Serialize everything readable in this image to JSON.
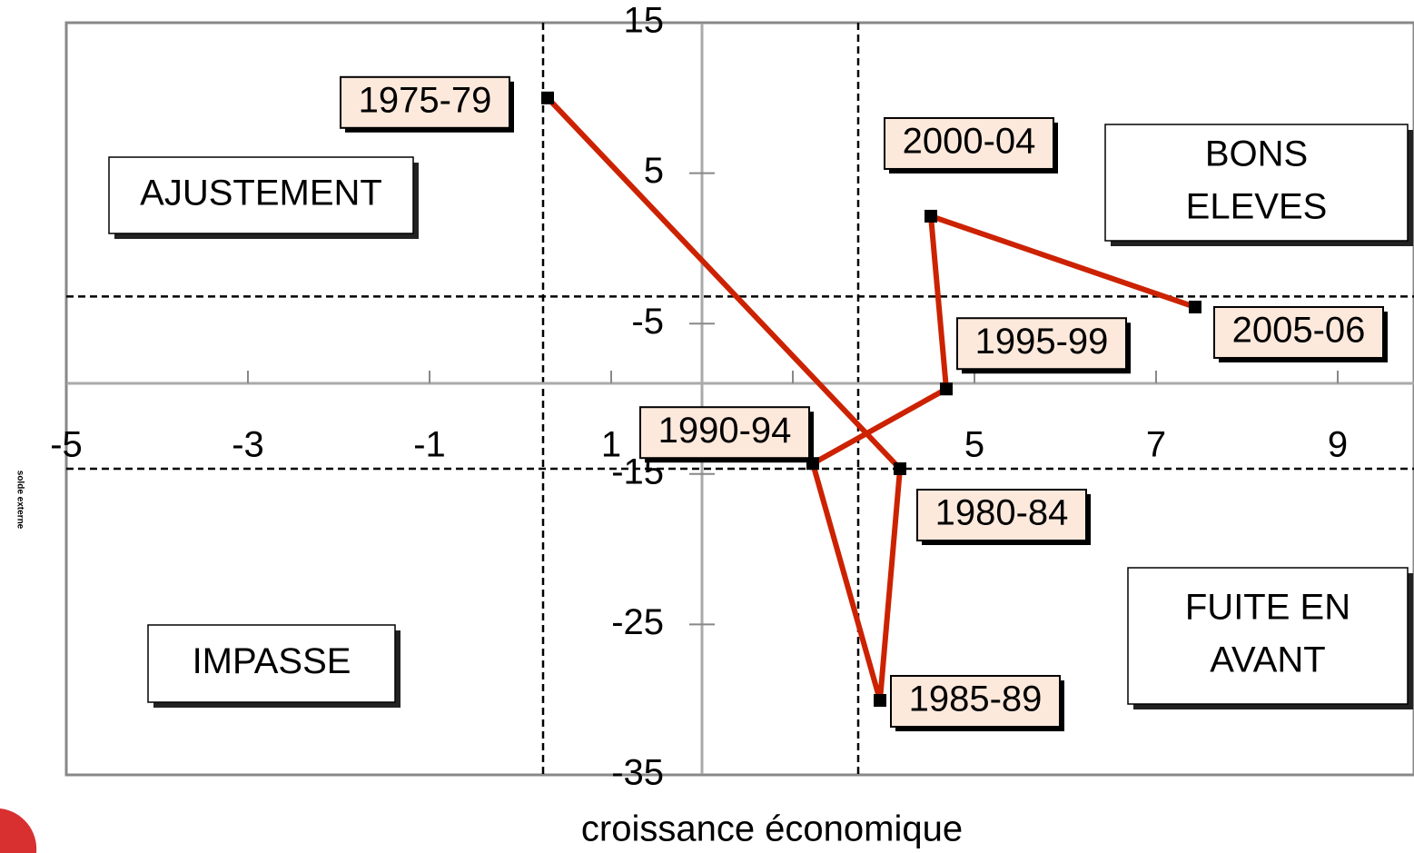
{
  "chart_data": {
    "type": "line",
    "x_label": "croissance économique",
    "y_label": "solde externe",
    "color": "#cc2200",
    "point_labels": [
      "1975-79",
      "1980-84",
      "1985-89",
      "1990-94",
      "1995-99",
      "2000-04",
      "2005-06"
    ],
    "x": [
      0.3,
      4.18,
      3.96,
      3.22,
      4.69,
      4.52,
      7.43
    ],
    "values": [
      10.0,
      -14.65,
      -30.05,
      -14.3,
      -9.35,
      2.14,
      -3.9
    ],
    "xlim": [
      -5,
      9.84
    ],
    "xticks": [
      -5,
      -3,
      -1,
      1,
      3,
      5,
      7,
      9
    ],
    "ylim": [
      -35,
      15
    ],
    "yticks": [
      15,
      5,
      -5,
      -15,
      -25,
      -35
    ],
    "reference_lines": {
      "x": [
        0.25,
        3.72
      ],
      "y": [
        -3.2,
        -14.65
      ]
    },
    "annotations": [
      [
        "AJUSTEMENT"
      ],
      [
        "BONS",
        "ELEVES"
      ],
      [
        "IMPASSE"
      ],
      [
        "FUITE EN",
        "AVANT"
      ]
    ]
  }
}
